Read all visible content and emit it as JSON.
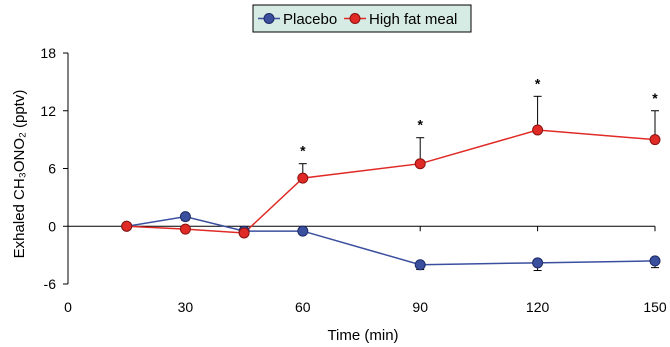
{
  "chart_data": {
    "type": "line",
    "title": "",
    "xlabel": "Time (min)",
    "ylabel": "Exhaled CH₃ONO₂ (pptv)",
    "xlim": [
      0,
      150
    ],
    "ylim": [
      -6,
      18
    ],
    "xticks": [
      0,
      30,
      60,
      90,
      120,
      150
    ],
    "yticks": [
      -6,
      0,
      6,
      12,
      18
    ],
    "grid": false,
    "legend_position": "top-center",
    "significance_marker": "*",
    "series": [
      {
        "name": "Placebo",
        "color": "#3a4f9e",
        "x": [
          15,
          30,
          45,
          60,
          90,
          120,
          150
        ],
        "y": [
          0,
          1.0,
          -0.5,
          -0.5,
          -4.0,
          -3.8,
          -3.6
        ],
        "error": [
          0,
          0.4,
          0.4,
          0,
          0.5,
          0.8,
          0.7
        ],
        "error_direction": [
          "none",
          "down",
          "up",
          "none",
          "down",
          "down",
          "down"
        ]
      },
      {
        "name": "High fat meal",
        "color": "#e02a26",
        "x": [
          15,
          30,
          45,
          60,
          90,
          120,
          150
        ],
        "y": [
          0,
          -0.3,
          -0.7,
          5.0,
          6.5,
          10.0,
          9.0
        ],
        "error": [
          0,
          0,
          0,
          1.5,
          2.7,
          3.5,
          3.0
        ],
        "error_direction": [
          "none",
          "none",
          "none",
          "up",
          "up",
          "up",
          "up"
        ],
        "significant": [
          false,
          false,
          false,
          true,
          true,
          true,
          true
        ]
      }
    ]
  }
}
